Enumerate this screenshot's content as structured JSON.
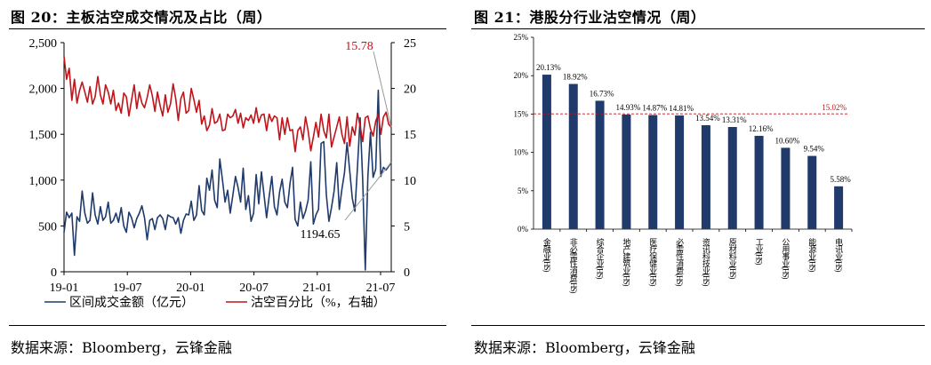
{
  "left": {
    "title": "图 20：主板沽空成交情况及占比（周）",
    "source": "数据来源：Bloomberg，云锋金融"
  },
  "right": {
    "title": "图 21：港股分行业沽空情况（周）",
    "source": "数据来源：Bloomberg，云锋金融"
  },
  "colors": {
    "navy": "#1f3a6b",
    "red": "#c0141b"
  },
  "chart_data": [
    {
      "type": "line",
      "x_ticks": [
        "19-01",
        "19-07",
        "20-01",
        "20-07",
        "21-01",
        "21-07"
      ],
      "left_axis": {
        "ylim": [
          0,
          2500
        ],
        "ticks": [
          "0",
          "500",
          "1,000",
          "1,500",
          "2,000",
          "2,500"
        ]
      },
      "right_axis": {
        "ylim": [
          0,
          25
        ],
        "ticks": [
          "0",
          "5",
          "10",
          "15",
          "20",
          "25"
        ]
      },
      "grid": false,
      "legend_position": "bottom",
      "series": [
        {
          "name": "区间成交金额（亿元）",
          "axis": "left",
          "color": "#1f3a6b",
          "values": [
            430,
            650,
            590,
            640,
            180,
            600,
            550,
            880,
            640,
            530,
            560,
            860,
            620,
            520,
            710,
            560,
            600,
            760,
            530,
            560,
            640,
            540,
            700,
            500,
            430,
            650,
            590,
            480,
            580,
            640,
            720,
            590,
            350,
            560,
            580,
            460,
            590,
            620,
            580,
            460,
            620,
            600,
            590,
            520,
            590,
            420,
            560,
            630,
            620,
            770,
            560,
            620,
            940,
            670,
            620,
            1020,
            890,
            1110,
            780,
            700,
            1230,
            1000,
            760,
            890,
            640,
            830,
            1040,
            920,
            760,
            1130,
            680,
            830,
            550,
            640,
            1060,
            740,
            1090,
            840,
            590,
            820,
            1040,
            710,
            620,
            870,
            1010,
            760,
            700,
            960,
            1140,
            570,
            500,
            760,
            580,
            660,
            780,
            1200,
            520,
            620,
            680,
            1400,
            1420,
            840,
            550,
            700,
            880,
            1190,
            680,
            900,
            1080,
            1410,
            1100,
            800,
            660,
            1140,
            1680,
            1000,
            20,
            1040,
            1520,
            1030,
            1120,
            1980,
            1040,
            1140,
            1110,
            1150,
            1194.65
          ]
        },
        {
          "name": "沽空百分比（%，右轴）",
          "axis": "right",
          "color": "#c0141b",
          "values": [
            23.5,
            21.0,
            22.2,
            18.7,
            21.0,
            18.4,
            19.8,
            20.7,
            19.6,
            18.5,
            20.2,
            18.3,
            19.1,
            21.3,
            19.3,
            18.3,
            20.4,
            19.6,
            18.3,
            19.8,
            17.6,
            18.4,
            17.3,
            19.5,
            19.1,
            17.0,
            18.7,
            20.4,
            17.8,
            19.6,
            18.4,
            17.9,
            19.0,
            20.4,
            19.2,
            17.5,
            19.6,
            18.1,
            17.0,
            19.3,
            17.4,
            18.3,
            20.5,
            18.9,
            16.5,
            18.9,
            19.6,
            17.3,
            17.6,
            20.0,
            18.8,
            17.4,
            18.7,
            16.1,
            17.0,
            15.4,
            16.0,
            17.8,
            16.2,
            16.4,
            17.2,
            15.4,
            15.5,
            17.2,
            16.8,
            17.0,
            17.7,
            16.2,
            17.3,
            15.7,
            16.8,
            16.5,
            17.1,
            16.2,
            17.9,
            16.3,
            17.1,
            17.2,
            15.4,
            17.2,
            16.4,
            17.0,
            16.8,
            14.4,
            16.8,
            15.0,
            16.8,
            15.4,
            15.5,
            13.1,
            15.4,
            15.8,
            14.4,
            16.9,
            15.4,
            13.2,
            14.7,
            16.3,
            14.7,
            17.2,
            15.4,
            14.6,
            17.2,
            13.6,
            14.7,
            15.8,
            16.9,
            15.0,
            14.0,
            16.9,
            13.7,
            15.8,
            14.9,
            17.3,
            15.9,
            14.2,
            16.8,
            17.0,
            15.6,
            14.8,
            16.4,
            17.2,
            15.0,
            16.9,
            17.4,
            16.1,
            15.78
          ]
        }
      ],
      "annotations": [
        {
          "text": "15.78",
          "series": "沽空百分比（%，右轴）"
        },
        {
          "text": "1194.65",
          "series": "区间成交金额（亿元）"
        }
      ]
    },
    {
      "type": "bar",
      "categories": [
        "金融业(HS)",
        "非必需性消费(HS)",
        "综合企业(HS)",
        "地产建筑业(HS)",
        "医疗保健业(HS)",
        "必需性消费(HS)",
        "资讯科技业(HS)",
        "原材料业(HS)",
        "工业(HS)",
        "公用事业(HS)",
        "能源业(HS)",
        "电讯业(HS)"
      ],
      "values": [
        20.13,
        18.92,
        16.73,
        14.93,
        14.87,
        14.81,
        13.54,
        13.31,
        12.16,
        10.6,
        9.54,
        5.58
      ],
      "value_labels": [
        "20.13%",
        "18.92%",
        "16.73%",
        "14.93%",
        "14.87%",
        "14.81%",
        "13.54%",
        "13.31%",
        "12.16%",
        "10.60%",
        "9.54%",
        "5.58%"
      ],
      "ylim": [
        0,
        25
      ],
      "y_ticks": [
        "0%",
        "5%",
        "10%",
        "15%",
        "20%",
        "25%"
      ],
      "reference_line": {
        "value": 15.02,
        "label": "15.02%",
        "color": "#c0141b"
      },
      "color": "#1f3a6b",
      "grid": false
    }
  ]
}
